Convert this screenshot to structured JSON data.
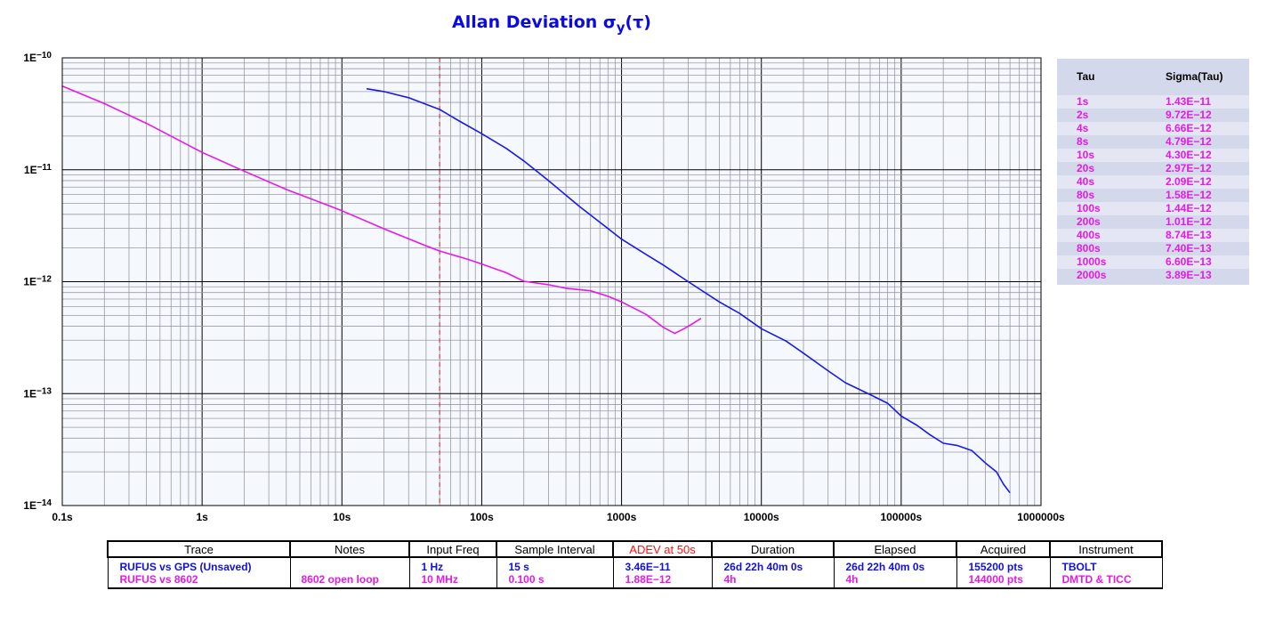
{
  "title": {
    "main": "Allan Deviation σ",
    "sub": "y",
    "suffix": "(τ)"
  },
  "colors": {
    "title": "#0a0ae6",
    "series_blue": "#1a1ae6",
    "series_magenta": "#e619e6",
    "marker": "#cc2222",
    "plot_bg": "#f5f8fc",
    "tau_table_bg": "#d3d8ea",
    "adev_header": "#ff1010"
  },
  "chart_data": {
    "type": "line",
    "title": "Allan Deviation σy(τ)",
    "xscale": "log",
    "yscale": "log",
    "xlim": [
      0.1,
      1000000
    ],
    "ylim": [
      1e-14,
      1e-10
    ],
    "grid": true,
    "x_ticks": [
      {
        "value": 0.1,
        "label": "0.1s"
      },
      {
        "value": 1,
        "label": "1s"
      },
      {
        "value": 10,
        "label": "10s"
      },
      {
        "value": 100,
        "label": "100s"
      },
      {
        "value": 1000,
        "label": "1000s"
      },
      {
        "value": 10000,
        "label": "10000s"
      },
      {
        "value": 100000,
        "label": "100000s"
      },
      {
        "value": 1000000,
        "label": "1000000s"
      }
    ],
    "y_ticks": [
      {
        "value": 1e-10,
        "base": "1E",
        "exp": "−10"
      },
      {
        "value": 1e-11,
        "base": "1E",
        "exp": "−11"
      },
      {
        "value": 1e-12,
        "base": "1E",
        "exp": "−12"
      },
      {
        "value": 1e-13,
        "base": "1E",
        "exp": "−13"
      },
      {
        "value": 1e-14,
        "base": "1E",
        "exp": "−14"
      }
    ],
    "marker_x": 50,
    "series": [
      {
        "name": "RUFUS vs GPS (Unsaved)",
        "color": "#1a1ae6",
        "points": [
          [
            15,
            5.3e-11
          ],
          [
            20,
            5e-11
          ],
          [
            30,
            4.4e-11
          ],
          [
            50,
            3.46e-11
          ],
          [
            70,
            2.7e-11
          ],
          [
            100,
            2.1e-11
          ],
          [
            150,
            1.55e-11
          ],
          [
            200,
            1.2e-11
          ],
          [
            300,
            8e-12
          ],
          [
            500,
            4.7e-12
          ],
          [
            700,
            3.4e-12
          ],
          [
            1000,
            2.4e-12
          ],
          [
            1500,
            1.75e-12
          ],
          [
            2000,
            1.4e-12
          ],
          [
            3000,
            1e-12
          ],
          [
            5000,
            6.6e-13
          ],
          [
            7000,
            5.2e-13
          ],
          [
            10000,
            3.8e-13
          ],
          [
            15000,
            2.95e-13
          ],
          [
            20000,
            2.3e-13
          ],
          [
            30000,
            1.6e-13
          ],
          [
            40000,
            1.25e-13
          ],
          [
            60000,
            9.8e-14
          ],
          [
            80000,
            8.2e-14
          ],
          [
            100000,
            6.3e-14
          ],
          [
            130000,
            5.2e-14
          ],
          [
            160000,
            4.3e-14
          ],
          [
            200000,
            3.6e-14
          ],
          [
            250000,
            3.45e-14
          ],
          [
            320000,
            3.1e-14
          ],
          [
            400000,
            2.4e-14
          ],
          [
            480000,
            2e-14
          ],
          [
            540000,
            1.55e-14
          ],
          [
            600000,
            1.3e-14
          ]
        ]
      },
      {
        "name": "RUFUS vs 8602",
        "color": "#e619e6",
        "points": [
          [
            0.1,
            5.6e-11
          ],
          [
            0.2,
            3.9e-11
          ],
          [
            0.4,
            2.6e-11
          ],
          [
            1,
            1.43e-11
          ],
          [
            2,
            9.72e-12
          ],
          [
            4,
            6.66e-12
          ],
          [
            8,
            4.79e-12
          ],
          [
            10,
            4.3e-12
          ],
          [
            20,
            2.97e-12
          ],
          [
            40,
            2.09e-12
          ],
          [
            50,
            1.88e-12
          ],
          [
            80,
            1.58e-12
          ],
          [
            100,
            1.44e-12
          ],
          [
            150,
            1.2e-12
          ],
          [
            200,
            1.01e-12
          ],
          [
            300,
            9.4e-13
          ],
          [
            400,
            8.74e-13
          ],
          [
            600,
            8.3e-13
          ],
          [
            800,
            7.4e-13
          ],
          [
            1000,
            6.6e-13
          ],
          [
            1500,
            5.1e-13
          ],
          [
            2000,
            3.89e-13
          ],
          [
            2400,
            3.45e-13
          ],
          [
            2800,
            3.8e-13
          ],
          [
            3200,
            4.2e-13
          ],
          [
            3700,
            4.7e-13
          ]
        ]
      }
    ]
  },
  "tau_table": {
    "headers": {
      "tau": "Tau",
      "sigma": "Sigma(Tau)"
    },
    "rows": [
      {
        "tau": "1s",
        "sigma": "1.43E−11"
      },
      {
        "tau": "2s",
        "sigma": "9.72E−12"
      },
      {
        "tau": "4s",
        "sigma": "6.66E−12"
      },
      {
        "tau": "8s",
        "sigma": "4.79E−12"
      },
      {
        "tau": "10s",
        "sigma": "4.30E−12"
      },
      {
        "tau": "20s",
        "sigma": "2.97E−12"
      },
      {
        "tau": "40s",
        "sigma": "2.09E−12"
      },
      {
        "tau": "80s",
        "sigma": "1.58E−12"
      },
      {
        "tau": "100s",
        "sigma": "1.44E−12"
      },
      {
        "tau": "200s",
        "sigma": "1.01E−12"
      },
      {
        "tau": "400s",
        "sigma": "8.74E−13"
      },
      {
        "tau": "800s",
        "sigma": "7.40E−13"
      },
      {
        "tau": "1000s",
        "sigma": "6.60E−13"
      },
      {
        "tau": "2000s",
        "sigma": "3.89E−13"
      }
    ]
  },
  "trace_table": {
    "headers": {
      "trace": "Trace",
      "notes": "Notes",
      "input_freq": "Input Freq",
      "sample_interval": "Sample Interval",
      "adev": "ADEV at 50s",
      "duration": "Duration",
      "elapsed": "Elapsed",
      "acquired": "Acquired",
      "instrument": "Instrument"
    },
    "rows": [
      {
        "trace": "RUFUS vs GPS (Unsaved)",
        "notes": "",
        "input_freq": "1 Hz",
        "sample_interval": "15 s",
        "adev": "3.46E−11",
        "duration": "26d 22h 40m 0s",
        "elapsed": "26d 22h 40m 0s",
        "acquired": "155200 pts",
        "instrument": "TBOLT"
      },
      {
        "trace": "RUFUS vs 8602",
        "notes": "8602 open loop",
        "input_freq": "10 MHz",
        "sample_interval": "0.100 s",
        "adev": "1.88E−12",
        "duration": "4h",
        "elapsed": "4h",
        "acquired": "144000 pts",
        "instrument": "DMTD & TICC"
      }
    ]
  }
}
